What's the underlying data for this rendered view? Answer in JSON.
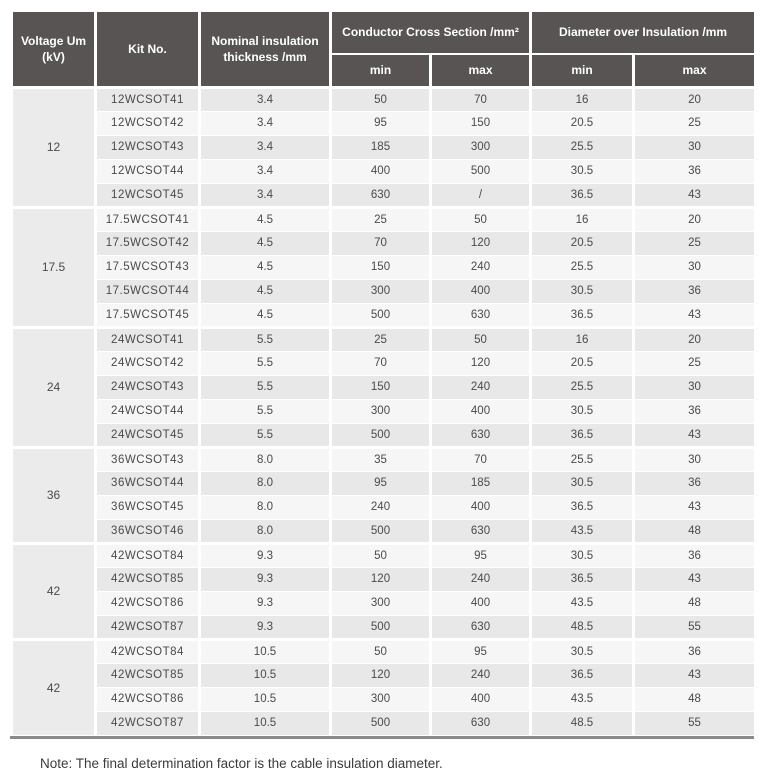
{
  "colors": {
    "header_bg": "#585454",
    "row_stripe_dark": "#e9e8e8",
    "row_stripe_light": "#f7f6f6",
    "voltage_column_bg": "#ecebeb",
    "bottom_rule": "#8a8a8a"
  },
  "table": {
    "headers": {
      "voltage": "Voltage Um (kV)",
      "kit_no": "Kit No.",
      "nominal": "Nominal insulation thickness /mm",
      "conductor_group": "Conductor Cross Section /mm²",
      "diameter_group": "Diameter over Insulation /mm",
      "min": "min",
      "max": "max"
    },
    "column_keys": [
      "kit_no",
      "thickness",
      "ccs_min",
      "ccs_max",
      "dia_min",
      "dia_max"
    ],
    "groups": [
      {
        "voltage": "12",
        "rows": [
          [
            "12WCSOT41",
            "3.4",
            "50",
            "70",
            "16",
            "20"
          ],
          [
            "12WCSOT42",
            "3.4",
            "95",
            "150",
            "20.5",
            "25"
          ],
          [
            "12WCSOT43",
            "3.4",
            "185",
            "300",
            "25.5",
            "30"
          ],
          [
            "12WCSOT44",
            "3.4",
            "400",
            "500",
            "30.5",
            "36"
          ],
          [
            "12WCSOT45",
            "3.4",
            "630",
            "/",
            "36.5",
            "43"
          ]
        ]
      },
      {
        "voltage": "17.5",
        "rows": [
          [
            "17.5WCSOT41",
            "4.5",
            "25",
            "50",
            "16",
            "20"
          ],
          [
            "17.5WCSOT42",
            "4.5",
            "70",
            "120",
            "20.5",
            "25"
          ],
          [
            "17.5WCSOT43",
            "4.5",
            "150",
            "240",
            "25.5",
            "30"
          ],
          [
            "17.5WCSOT44",
            "4.5",
            "300",
            "400",
            "30.5",
            "36"
          ],
          [
            "17.5WCSOT45",
            "4.5",
            "500",
            "630",
            "36.5",
            "43"
          ]
        ]
      },
      {
        "voltage": "24",
        "rows": [
          [
            "24WCSOT41",
            "5.5",
            "25",
            "50",
            "16",
            "20"
          ],
          [
            "24WCSOT42",
            "5.5",
            "70",
            "120",
            "20.5",
            "25"
          ],
          [
            "24WCSOT43",
            "5.5",
            "150",
            "240",
            "25.5",
            "30"
          ],
          [
            "24WCSOT44",
            "5.5",
            "300",
            "400",
            "30.5",
            "36"
          ],
          [
            "24WCSOT45",
            "5.5",
            "500",
            "630",
            "36.5",
            "43"
          ]
        ]
      },
      {
        "voltage": "36",
        "rows": [
          [
            "36WCSOT43",
            "8.0",
            "35",
            "70",
            "25.5",
            "30"
          ],
          [
            "36WCSOT44",
            "8.0",
            "95",
            "185",
            "30.5",
            "36"
          ],
          [
            "36WCSOT45",
            "8.0",
            "240",
            "400",
            "36.5",
            "43"
          ],
          [
            "36WCSOT46",
            "8.0",
            "500",
            "630",
            "43.5",
            "48"
          ]
        ]
      },
      {
        "voltage": "42",
        "rows": [
          [
            "42WCSOT84",
            "9.3",
            "50",
            "95",
            "30.5",
            "36"
          ],
          [
            "42WCSOT85",
            "9.3",
            "120",
            "240",
            "36.5",
            "43"
          ],
          [
            "42WCSOT86",
            "9.3",
            "300",
            "400",
            "43.5",
            "48"
          ],
          [
            "42WCSOT87",
            "9.3",
            "500",
            "630",
            "48.5",
            "55"
          ]
        ]
      },
      {
        "voltage": "42",
        "rows": [
          [
            "42WCSOT84",
            "10.5",
            "50",
            "95",
            "30.5",
            "36"
          ],
          [
            "42WCSOT85",
            "10.5",
            "120",
            "240",
            "36.5",
            "43"
          ],
          [
            "42WCSOT86",
            "10.5",
            "300",
            "400",
            "43.5",
            "48"
          ],
          [
            "42WCSOT87",
            "10.5",
            "500",
            "630",
            "48.5",
            "55"
          ]
        ]
      }
    ]
  },
  "note": "Note: The final determination factor is the cable insulation diameter."
}
